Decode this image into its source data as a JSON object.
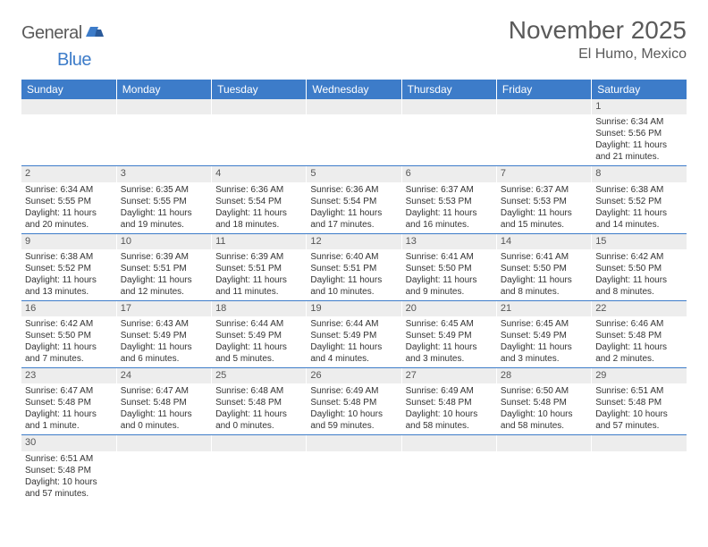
{
  "logo": {
    "general": "General",
    "blue": "Blue"
  },
  "title": "November 2025",
  "location": "El Humo, Mexico",
  "weekdays": [
    "Sunday",
    "Monday",
    "Tuesday",
    "Wednesday",
    "Thursday",
    "Friday",
    "Saturday"
  ],
  "colors": {
    "header_bg": "#3d7cc9",
    "stripe_bg": "#ededed",
    "text": "#333333",
    "title_text": "#5a5a5a"
  },
  "cells": [
    [
      null,
      null,
      null,
      null,
      null,
      null,
      {
        "n": "1",
        "sr": "Sunrise: 6:34 AM",
        "ss": "Sunset: 5:56 PM",
        "d1": "Daylight: 11 hours",
        "d2": "and 21 minutes."
      }
    ],
    [
      {
        "n": "2",
        "sr": "Sunrise: 6:34 AM",
        "ss": "Sunset: 5:55 PM",
        "d1": "Daylight: 11 hours",
        "d2": "and 20 minutes."
      },
      {
        "n": "3",
        "sr": "Sunrise: 6:35 AM",
        "ss": "Sunset: 5:55 PM",
        "d1": "Daylight: 11 hours",
        "d2": "and 19 minutes."
      },
      {
        "n": "4",
        "sr": "Sunrise: 6:36 AM",
        "ss": "Sunset: 5:54 PM",
        "d1": "Daylight: 11 hours",
        "d2": "and 18 minutes."
      },
      {
        "n": "5",
        "sr": "Sunrise: 6:36 AM",
        "ss": "Sunset: 5:54 PM",
        "d1": "Daylight: 11 hours",
        "d2": "and 17 minutes."
      },
      {
        "n": "6",
        "sr": "Sunrise: 6:37 AM",
        "ss": "Sunset: 5:53 PM",
        "d1": "Daylight: 11 hours",
        "d2": "and 16 minutes."
      },
      {
        "n": "7",
        "sr": "Sunrise: 6:37 AM",
        "ss": "Sunset: 5:53 PM",
        "d1": "Daylight: 11 hours",
        "d2": "and 15 minutes."
      },
      {
        "n": "8",
        "sr": "Sunrise: 6:38 AM",
        "ss": "Sunset: 5:52 PM",
        "d1": "Daylight: 11 hours",
        "d2": "and 14 minutes."
      }
    ],
    [
      {
        "n": "9",
        "sr": "Sunrise: 6:38 AM",
        "ss": "Sunset: 5:52 PM",
        "d1": "Daylight: 11 hours",
        "d2": "and 13 minutes."
      },
      {
        "n": "10",
        "sr": "Sunrise: 6:39 AM",
        "ss": "Sunset: 5:51 PM",
        "d1": "Daylight: 11 hours",
        "d2": "and 12 minutes."
      },
      {
        "n": "11",
        "sr": "Sunrise: 6:39 AM",
        "ss": "Sunset: 5:51 PM",
        "d1": "Daylight: 11 hours",
        "d2": "and 11 minutes."
      },
      {
        "n": "12",
        "sr": "Sunrise: 6:40 AM",
        "ss": "Sunset: 5:51 PM",
        "d1": "Daylight: 11 hours",
        "d2": "and 10 minutes."
      },
      {
        "n": "13",
        "sr": "Sunrise: 6:41 AM",
        "ss": "Sunset: 5:50 PM",
        "d1": "Daylight: 11 hours",
        "d2": "and 9 minutes."
      },
      {
        "n": "14",
        "sr": "Sunrise: 6:41 AM",
        "ss": "Sunset: 5:50 PM",
        "d1": "Daylight: 11 hours",
        "d2": "and 8 minutes."
      },
      {
        "n": "15",
        "sr": "Sunrise: 6:42 AM",
        "ss": "Sunset: 5:50 PM",
        "d1": "Daylight: 11 hours",
        "d2": "and 8 minutes."
      }
    ],
    [
      {
        "n": "16",
        "sr": "Sunrise: 6:42 AM",
        "ss": "Sunset: 5:50 PM",
        "d1": "Daylight: 11 hours",
        "d2": "and 7 minutes."
      },
      {
        "n": "17",
        "sr": "Sunrise: 6:43 AM",
        "ss": "Sunset: 5:49 PM",
        "d1": "Daylight: 11 hours",
        "d2": "and 6 minutes."
      },
      {
        "n": "18",
        "sr": "Sunrise: 6:44 AM",
        "ss": "Sunset: 5:49 PM",
        "d1": "Daylight: 11 hours",
        "d2": "and 5 minutes."
      },
      {
        "n": "19",
        "sr": "Sunrise: 6:44 AM",
        "ss": "Sunset: 5:49 PM",
        "d1": "Daylight: 11 hours",
        "d2": "and 4 minutes."
      },
      {
        "n": "20",
        "sr": "Sunrise: 6:45 AM",
        "ss": "Sunset: 5:49 PM",
        "d1": "Daylight: 11 hours",
        "d2": "and 3 minutes."
      },
      {
        "n": "21",
        "sr": "Sunrise: 6:45 AM",
        "ss": "Sunset: 5:49 PM",
        "d1": "Daylight: 11 hours",
        "d2": "and 3 minutes."
      },
      {
        "n": "22",
        "sr": "Sunrise: 6:46 AM",
        "ss": "Sunset: 5:48 PM",
        "d1": "Daylight: 11 hours",
        "d2": "and 2 minutes."
      }
    ],
    [
      {
        "n": "23",
        "sr": "Sunrise: 6:47 AM",
        "ss": "Sunset: 5:48 PM",
        "d1": "Daylight: 11 hours",
        "d2": "and 1 minute."
      },
      {
        "n": "24",
        "sr": "Sunrise: 6:47 AM",
        "ss": "Sunset: 5:48 PM",
        "d1": "Daylight: 11 hours",
        "d2": "and 0 minutes."
      },
      {
        "n": "25",
        "sr": "Sunrise: 6:48 AM",
        "ss": "Sunset: 5:48 PM",
        "d1": "Daylight: 11 hours",
        "d2": "and 0 minutes."
      },
      {
        "n": "26",
        "sr": "Sunrise: 6:49 AM",
        "ss": "Sunset: 5:48 PM",
        "d1": "Daylight: 10 hours",
        "d2": "and 59 minutes."
      },
      {
        "n": "27",
        "sr": "Sunrise: 6:49 AM",
        "ss": "Sunset: 5:48 PM",
        "d1": "Daylight: 10 hours",
        "d2": "and 58 minutes."
      },
      {
        "n": "28",
        "sr": "Sunrise: 6:50 AM",
        "ss": "Sunset: 5:48 PM",
        "d1": "Daylight: 10 hours",
        "d2": "and 58 minutes."
      },
      {
        "n": "29",
        "sr": "Sunrise: 6:51 AM",
        "ss": "Sunset: 5:48 PM",
        "d1": "Daylight: 10 hours",
        "d2": "and 57 minutes."
      }
    ],
    [
      {
        "n": "30",
        "sr": "Sunrise: 6:51 AM",
        "ss": "Sunset: 5:48 PM",
        "d1": "Daylight: 10 hours",
        "d2": "and 57 minutes."
      },
      null,
      null,
      null,
      null,
      null,
      null
    ]
  ]
}
